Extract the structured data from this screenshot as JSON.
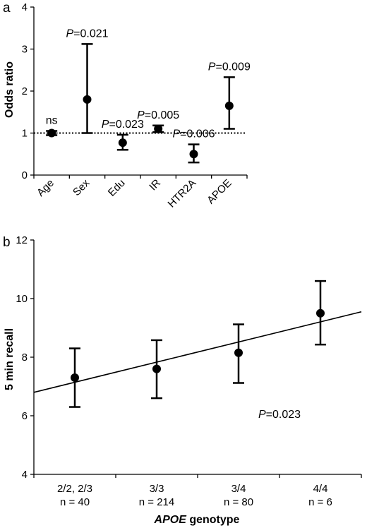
{
  "chart_data": [
    {
      "panel_label": "a",
      "type": "scatter",
      "ylabel": "Odds ratio",
      "ylim": [
        0,
        4
      ],
      "yticks": [
        "0",
        "1",
        "2",
        "3",
        "4"
      ],
      "categories": [
        "Age",
        "Sex",
        "Edu",
        "IR",
        "HTR2A",
        "APOE"
      ],
      "values": [
        1.0,
        1.8,
        0.77,
        1.1,
        0.5,
        1.65
      ],
      "ci_low": [
        0.95,
        1.0,
        0.6,
        1.02,
        0.3,
        1.1
      ],
      "ci_high": [
        1.05,
        3.12,
        0.96,
        1.18,
        0.73,
        2.33
      ],
      "reference_line": {
        "y": 1,
        "style": "dotted"
      },
      "annotations": [
        {
          "prefix": "",
          "value": "ns"
        },
        {
          "prefix": "P",
          "value": "=0.021"
        },
        {
          "prefix": "P",
          "value": "=0.023"
        },
        {
          "prefix": "P",
          "value": "=0.005"
        },
        {
          "prefix": "P",
          "value": "=0.006"
        },
        {
          "prefix": "P",
          "value": "=0.009"
        }
      ],
      "grid": false
    },
    {
      "panel_label": "b",
      "type": "scatter",
      "ylabel": "5 min recall",
      "xlabel_italic": "APOE",
      "xlabel_rest": " genotype",
      "ylim": [
        4,
        12
      ],
      "yticks": [
        "4",
        "6",
        "8",
        "10",
        "12"
      ],
      "categories": [
        "2/2, 2/3",
        "3/3",
        "3/4",
        "4/4"
      ],
      "category_n": [
        "n = 40",
        "n = 214",
        "n = 80",
        "n = 6"
      ],
      "values": [
        7.3,
        7.6,
        8.15,
        9.5
      ],
      "ci_low": [
        6.3,
        6.6,
        7.12,
        8.43
      ],
      "ci_high": [
        8.3,
        8.58,
        9.12,
        10.6
      ],
      "trendline": {
        "x_start": 0.5,
        "y_start": 6.8,
        "x_end": 4.5,
        "y_end": 9.55
      },
      "annotation": {
        "prefix": "P",
        "value": "=0.023",
        "x": 3.5,
        "y": 6.05
      },
      "grid": false
    }
  ]
}
